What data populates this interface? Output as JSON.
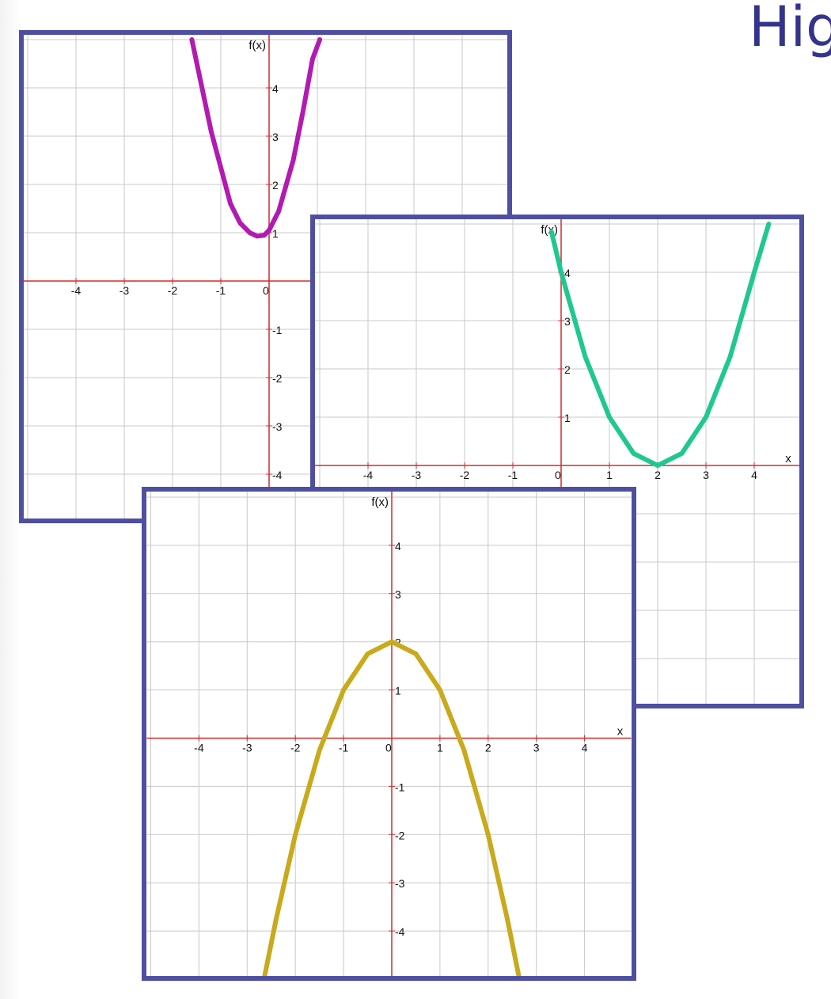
{
  "page": {
    "title": "Hig"
  },
  "chart_data": [
    {
      "type": "line",
      "title": "",
      "xlabel": "",
      "ylabel": "f(x)",
      "xlim": [
        -5,
        5
      ],
      "ylim": [
        -5,
        5
      ],
      "grid": true,
      "x_ticks": [
        "-4",
        "-3",
        "-2",
        "-1",
        "0"
      ],
      "y_ticks": [
        "4",
        "3",
        "2",
        "1",
        "-1",
        "-2",
        "-3",
        "-4"
      ],
      "origin_label": "0",
      "series": [
        {
          "color": "#b21ab2",
          "x": [
            -1.6,
            -1.2,
            -0.8,
            -0.6,
            -0.4,
            -0.25,
            -0.1,
            0.0,
            0.2,
            0.5,
            0.7,
            0.9,
            1.05
          ],
          "y": [
            5.0,
            3.1,
            1.6,
            1.2,
            1.0,
            0.93,
            0.95,
            1.05,
            1.45,
            2.5,
            3.5,
            4.6,
            5.0
          ]
        }
      ]
    },
    {
      "type": "line",
      "title": "",
      "xlabel": "x",
      "ylabel": "f(x)",
      "xlim": [
        -5,
        5
      ],
      "ylim": [
        -5,
        5
      ],
      "grid": true,
      "x_ticks": [
        "-4",
        "-3",
        "-2",
        "-1",
        "0",
        "1",
        "2",
        "3",
        "4"
      ],
      "y_ticks": [
        "4",
        "3",
        "2",
        "1"
      ],
      "origin_label": "0",
      "series": [
        {
          "color": "#20c890",
          "x": [
            -0.2,
            0,
            0.5,
            1,
            1.5,
            2,
            2.5,
            3,
            3.5,
            4,
            4.3
          ],
          "y": [
            4.84,
            4,
            2.25,
            1,
            0.25,
            0,
            0.25,
            1,
            2.25,
            4,
            5.0
          ]
        }
      ]
    },
    {
      "type": "line",
      "title": "",
      "xlabel": "x",
      "ylabel": "f(x)",
      "xlim": [
        -5,
        5
      ],
      "ylim": [
        -5,
        5
      ],
      "grid": true,
      "x_ticks": [
        "-4",
        "-3",
        "-2",
        "-1",
        "0",
        "1",
        "2",
        "3",
        "4"
      ],
      "y_ticks": [
        "4",
        "3",
        "2",
        "1",
        "-1",
        "-2",
        "-3",
        "-4"
      ],
      "origin_label": "0",
      "series": [
        {
          "color": "#c8aa1c",
          "x": [
            -2.65,
            -2.4,
            -2,
            -1.5,
            -1,
            -0.5,
            0,
            0.5,
            1,
            1.5,
            2,
            2.4,
            2.65
          ],
          "y": [
            -5.0,
            -3.76,
            -2,
            -0.25,
            1,
            1.75,
            2,
            1.75,
            1,
            -0.25,
            -2,
            -3.76,
            -5.0
          ]
        }
      ]
    }
  ]
}
